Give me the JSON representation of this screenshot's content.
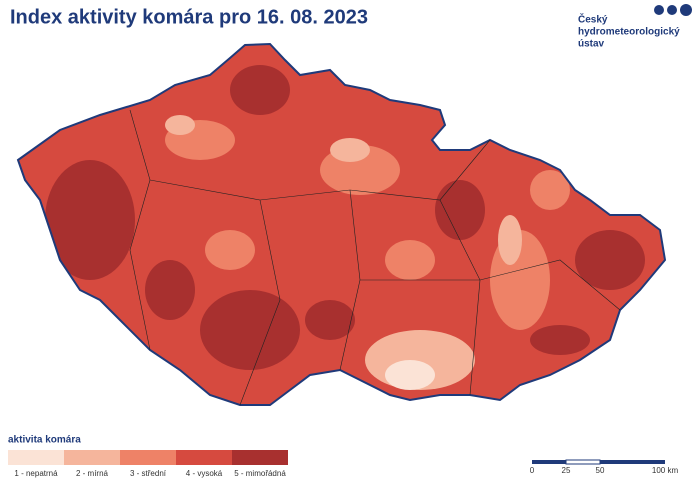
{
  "header": {
    "title": "Index aktivity komára pro 16. 08. 2023"
  },
  "logo": {
    "lines": [
      "Český",
      "hydrometeorologický",
      "ústav"
    ]
  },
  "legend": {
    "title": "aktivita komára",
    "items": [
      {
        "label": "1 - nepatrná",
        "color": "#fbe3d6"
      },
      {
        "label": "2 - mírná",
        "color": "#f5b59c"
      },
      {
        "label": "3 - střední",
        "color": "#ee8267"
      },
      {
        "label": "4 - vysoká",
        "color": "#d64a3f"
      },
      {
        "label": "5 - mimořádná",
        "color": "#a8302f"
      }
    ]
  },
  "scale": {
    "labels": [
      "0",
      "25",
      "50",
      "100 km"
    ]
  }
}
